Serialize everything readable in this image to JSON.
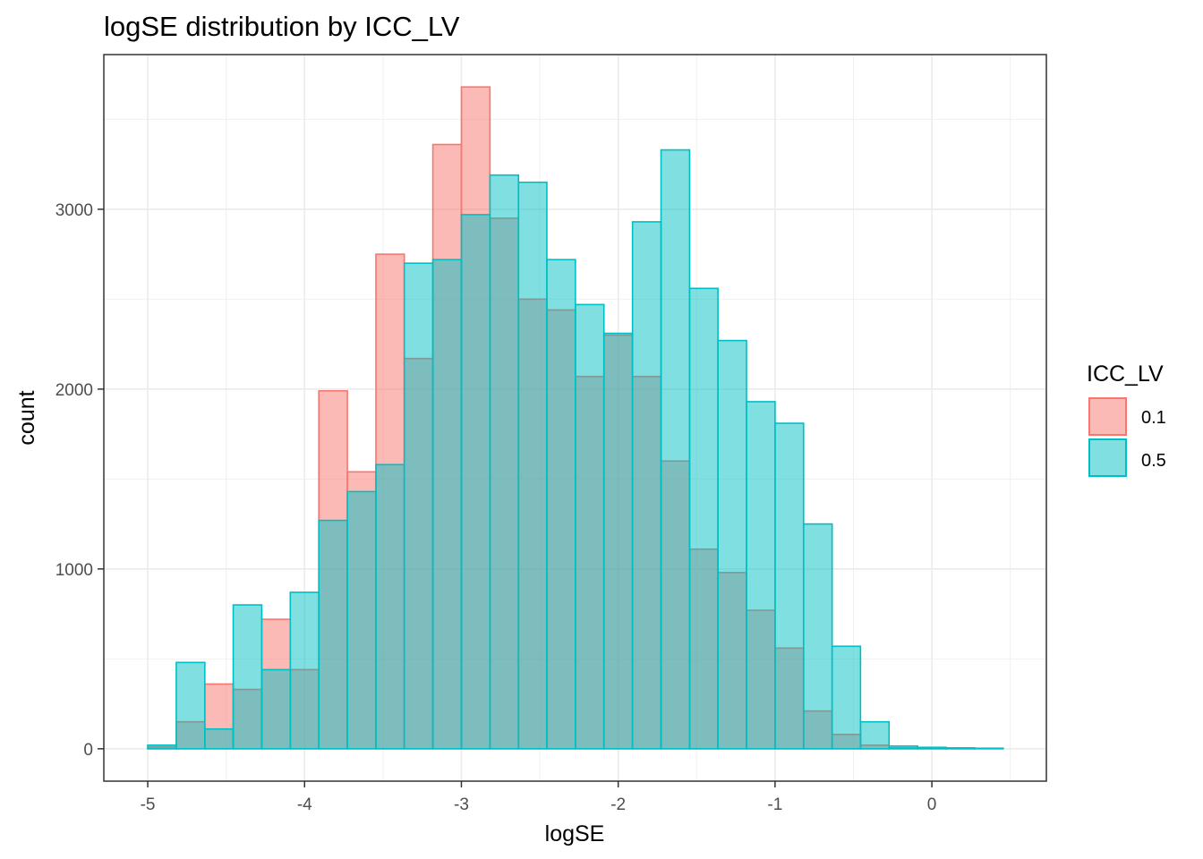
{
  "chart_data": {
    "type": "histogram",
    "title": "logSE distribution by ICC_LV",
    "xlabel": "logSE",
    "ylabel": "count",
    "xlim": [
      -5.28,
      0.73
    ],
    "ylim": [
      -180,
      3860
    ],
    "x_ticks": [
      -5,
      -4,
      -3,
      -2,
      -1,
      0
    ],
    "x_tick_labels": [
      "-5",
      "-4",
      "-3",
      "-2",
      "-1",
      "0"
    ],
    "y_ticks": [
      0,
      1000,
      2000,
      3000
    ],
    "y_tick_labels": [
      "0",
      "1000",
      "2000",
      "3000"
    ],
    "grid": true,
    "legend": {
      "title": "ICC_LV",
      "position": "right"
    },
    "bin_edges": [
      -5.0,
      -4.818,
      -4.636,
      -4.455,
      -4.273,
      -4.091,
      -3.909,
      -3.727,
      -3.545,
      -3.364,
      -3.182,
      -3.0,
      -2.818,
      -2.636,
      -2.455,
      -2.273,
      -2.091,
      -1.909,
      -1.727,
      -1.545,
      -1.364,
      -1.182,
      -1.0,
      -0.818,
      -0.636,
      -0.455,
      -0.273,
      -0.091,
      0.091,
      0.273,
      0.455
    ],
    "series": [
      {
        "name": "0.1",
        "fill": "#F8766D",
        "stroke": "#F8766D",
        "fill_opacity": 0.5,
        "values": [
          10,
          150,
          360,
          330,
          720,
          440,
          1990,
          1540,
          2750,
          2170,
          3360,
          3680,
          2950,
          2500,
          2440,
          2070,
          2300,
          2070,
          1600,
          1110,
          980,
          770,
          560,
          210,
          80,
          20,
          5,
          3,
          1,
          0
        ]
      },
      {
        "name": "0.5",
        "fill": "#00BFC4",
        "stroke": "#00BFC4",
        "fill_opacity": 0.5,
        "values": [
          20,
          480,
          110,
          800,
          440,
          870,
          1270,
          1430,
          1580,
          2700,
          2720,
          2970,
          3190,
          3150,
          2720,
          2470,
          2310,
          2930,
          3330,
          2560,
          2270,
          1930,
          1810,
          1250,
          570,
          150,
          15,
          8,
          5,
          3
        ]
      }
    ]
  }
}
